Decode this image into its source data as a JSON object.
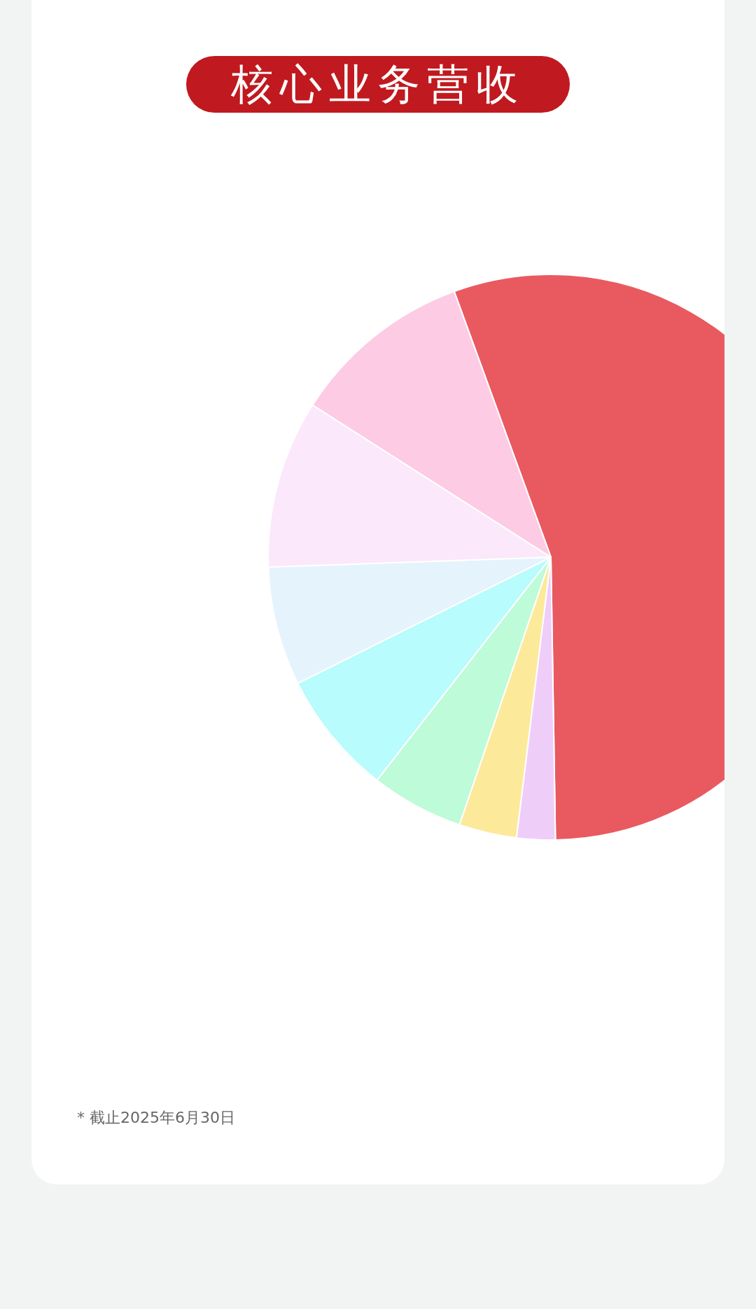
{
  "chart_data": {
    "type": "pie",
    "title": "核心业务营收",
    "categories": [
      null,
      null,
      null,
      null,
      null,
      null,
      null,
      null
    ],
    "values": [
      55.3,
      2.2,
      3.3,
      5.3,
      7.1,
      6.8,
      9.6,
      10.4
    ],
    "colors": [
      "#e85a60",
      "#efcdf9",
      "#fde99a",
      "#bdfbd9",
      "#b8fcfd",
      "#e5f3fd",
      "#fbe8fb",
      "#fdcbe3"
    ],
    "annotations": [
      "* 截止2025年6月30日"
    ]
  }
}
